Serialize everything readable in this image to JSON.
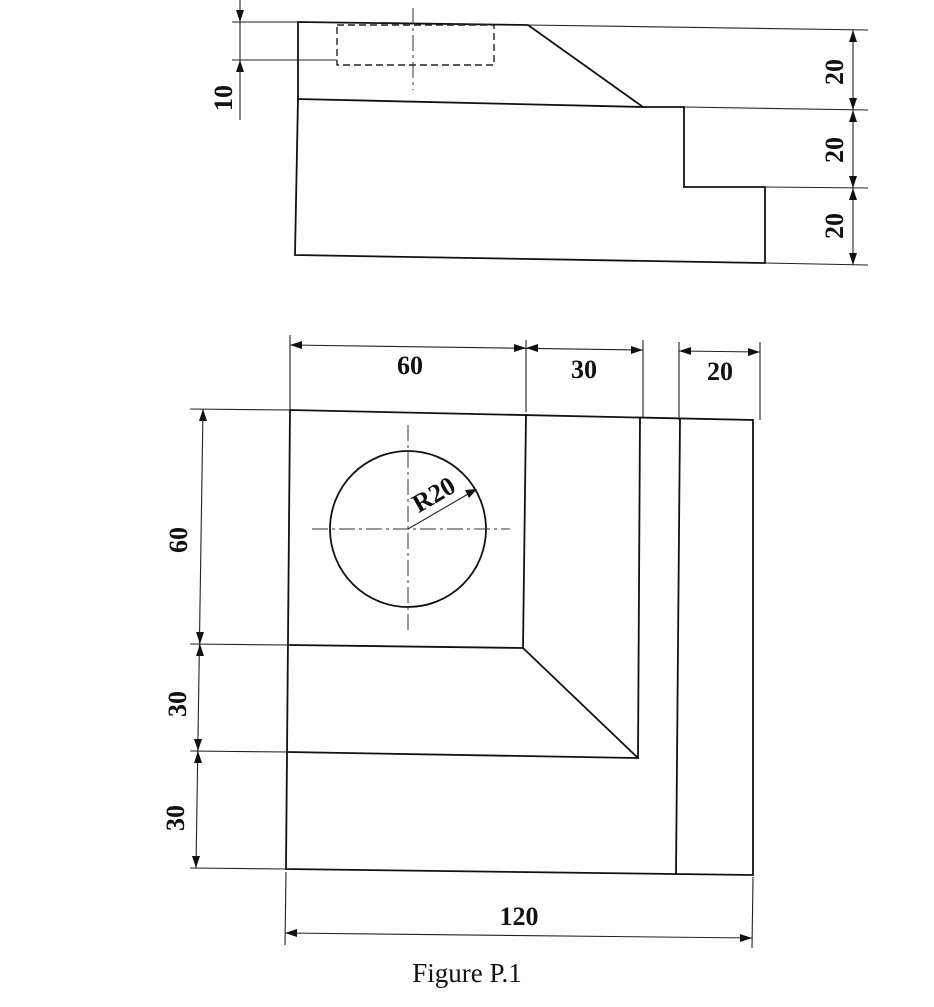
{
  "caption": "Figure P.1",
  "front_view": {
    "dims": {
      "hole_depth": "10",
      "top_step": "20",
      "middle_step": "20",
      "bottom_step": "20"
    }
  },
  "top_view": {
    "dims": {
      "left_width": "60",
      "middle_width": "30",
      "right_width": "20",
      "upper_height": "60",
      "middle_height": "30",
      "lower_height": "30",
      "total_width": "120",
      "radius": "R20"
    }
  }
}
